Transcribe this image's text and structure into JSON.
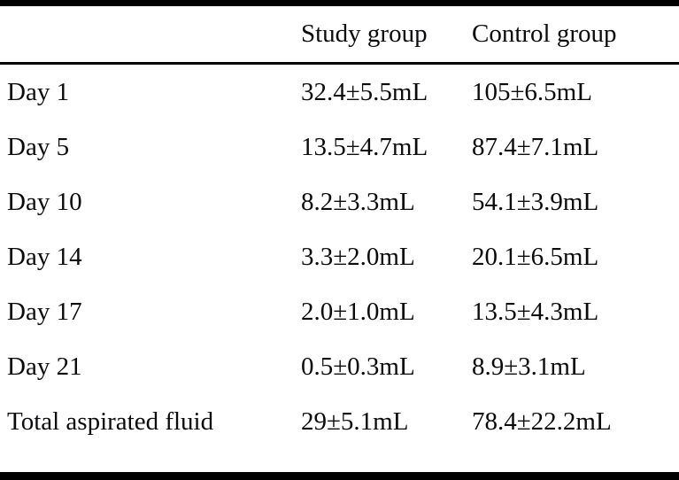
{
  "table": {
    "columns": [
      "",
      "Study group",
      "Control group"
    ],
    "rows": [
      {
        "label": "Day 1",
        "study": "32.4±5.5mL",
        "control": "105±6.5mL"
      },
      {
        "label": "Day 5",
        "study": "13.5±4.7mL",
        "control": "87.4±7.1mL"
      },
      {
        "label": "Day 10",
        "study": "8.2±3.3mL",
        "control": "54.1±3.9mL"
      },
      {
        "label": "Day 14",
        "study": "3.3±2.0mL",
        "control": "20.1±6.5mL"
      },
      {
        "label": "Day 17",
        "study": "2.0±1.0mL",
        "control": "13.5±4.3mL"
      },
      {
        "label": "Day 21",
        "study": "0.5±0.3mL",
        "control": "8.9±3.1mL"
      },
      {
        "label": "Total aspirated fluid",
        "study": "29±5.1mL",
        "control": "78.4±22.2mL"
      }
    ]
  }
}
